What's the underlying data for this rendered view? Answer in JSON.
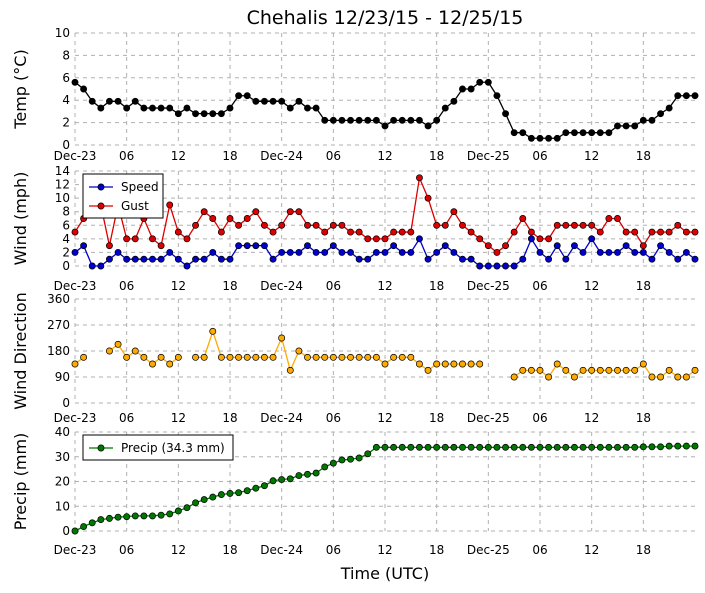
{
  "chart_data": {
    "type": "line",
    "title": "Chehalis 12/23/15 - 12/25/15",
    "xlabel": "Time (UTC)",
    "x_tick_labels": [
      "Dec-23",
      "06",
      "12",
      "18",
      "Dec-24",
      "06",
      "12",
      "18",
      "Dec-25",
      "06",
      "12",
      "18"
    ],
    "x_tick_hours": [
      0,
      6,
      12,
      18,
      24,
      30,
      36,
      42,
      48,
      54,
      60,
      66
    ],
    "x_range_hours": [
      0,
      72
    ],
    "grid": true,
    "panels": [
      {
        "id": "temp",
        "ylabel": "Temp (°C)",
        "ylim": [
          0,
          10
        ],
        "yticks": [
          0,
          2,
          4,
          6,
          8,
          10
        ],
        "legend": null,
        "series": [
          {
            "color": "#000000",
            "values": [
              5.6,
              5.0,
              3.9,
              3.3,
              3.9,
              3.9,
              3.3,
              3.9,
              3.3,
              3.3,
              3.3,
              3.3,
              2.8,
              3.3,
              2.8,
              2.8,
              2.8,
              2.8,
              3.3,
              4.4,
              4.4,
              3.9,
              3.9,
              3.9,
              3.9,
              3.3,
              3.9,
              3.3,
              3.3,
              2.2,
              2.2,
              2.2,
              2.2,
              2.2,
              2.2,
              2.2,
              1.7,
              2.2,
              2.2,
              2.2,
              2.2,
              1.7,
              2.2,
              3.3,
              3.9,
              5.0,
              5.0,
              5.6,
              5.6,
              4.4,
              2.8,
              1.1,
              1.1,
              0.6,
              0.6,
              0.6,
              0.6,
              1.1,
              1.1,
              1.1,
              1.1,
              1.1,
              1.1,
              1.7,
              1.7,
              1.7,
              2.2,
              2.2,
              2.8,
              3.3,
              4.4,
              4.4,
              4.4
            ]
          }
        ]
      },
      {
        "id": "wind",
        "ylabel": "Wind (mph)",
        "ylim": [
          0,
          14
        ],
        "yticks": [
          0,
          2,
          4,
          6,
          8,
          10,
          12,
          14
        ],
        "legend": "top-left",
        "series": [
          {
            "name": "Speed",
            "color": "#0000cc",
            "values": [
              2,
              3,
              0,
              0,
              1,
              2,
              1,
              1,
              1,
              1,
              1,
              2,
              1,
              0,
              1,
              1,
              2,
              1,
              1,
              3,
              3,
              3,
              3,
              1,
              2,
              2,
              2,
              3,
              2,
              2,
              3,
              2,
              2,
              1,
              1,
              2,
              2,
              3,
              2,
              2,
              4,
              1,
              2,
              3,
              2,
              1,
              1,
              0,
              0,
              0,
              0,
              0,
              1,
              4,
              2,
              1,
              3,
              1,
              3,
              2,
              4,
              2,
              2,
              2,
              3,
              2,
              2,
              1,
              3,
              2,
              1,
              2,
              1
            ]
          },
          {
            "name": "Gust",
            "color": "#dd0000",
            "values": [
              5,
              7,
              8,
              9,
              3,
              9,
              4,
              4,
              7,
              4,
              3,
              9,
              5,
              4,
              6,
              8,
              7,
              5,
              7,
              6,
              7,
              8,
              6,
              5,
              6,
              8,
              8,
              6,
              6,
              5,
              6,
              6,
              5,
              5,
              4,
              4,
              4,
              5,
              5,
              5,
              13,
              10,
              6,
              6,
              8,
              6,
              5,
              4,
              3,
              2,
              3,
              5,
              7,
              5,
              4,
              4,
              6,
              6,
              6,
              6,
              6,
              5,
              7,
              7,
              5,
              5,
              3,
              5,
              5,
              5,
              6,
              5,
              5
            ]
          }
        ]
      },
      {
        "id": "direction",
        "ylabel": "Wind Direction",
        "ylim": [
          0,
          360
        ],
        "yticks": [
          0,
          90,
          180,
          270,
          360
        ],
        "legend": null,
        "series": [
          {
            "color": "#ffaa00",
            "values": [
              135,
              158,
              null,
              null,
              180,
              203,
              158,
              180,
              158,
              135,
              158,
              135,
              158,
              null,
              158,
              158,
              248,
              158,
              158,
              158,
              158,
              158,
              158,
              158,
              225,
              113,
              180,
              158,
              158,
              158,
              158,
              158,
              158,
              158,
              158,
              158,
              135,
              158,
              158,
              158,
              135,
              113,
              135,
              135,
              135,
              135,
              135,
              135,
              null,
              null,
              null,
              90,
              113,
              113,
              113,
              90,
              135,
              113,
              90,
              113,
              113,
              113,
              113,
              113,
              113,
              113,
              135,
              90,
              90,
              113,
              90,
              90,
              113
            ]
          }
        ]
      },
      {
        "id": "precip",
        "ylabel": "Precip (mm)",
        "ylim": [
          0,
          40
        ],
        "yticks": [
          0,
          10,
          20,
          30,
          40
        ],
        "legend": "top-left",
        "series": [
          {
            "name": "Precip (34.3 mm)",
            "color": "#007700",
            "values": [
              0.0,
              1.8,
              3.3,
              4.6,
              5.1,
              5.6,
              5.8,
              6.1,
              6.1,
              6.1,
              6.4,
              6.9,
              8.1,
              9.4,
              11.4,
              12.7,
              13.7,
              14.7,
              15.2,
              15.5,
              16.3,
              17.3,
              18.3,
              20.3,
              20.8,
              21.1,
              22.4,
              22.9,
              23.4,
              25.9,
              27.4,
              28.7,
              29.0,
              29.5,
              31.2,
              33.8,
              33.8,
              33.8,
              33.8,
              33.8,
              33.8,
              33.8,
              33.8,
              33.8,
              33.8,
              33.8,
              33.8,
              33.8,
              33.8,
              33.8,
              33.8,
              33.8,
              33.8,
              33.8,
              33.8,
              33.8,
              33.8,
              33.8,
              33.8,
              33.8,
              33.8,
              33.8,
              33.8,
              33.8,
              33.8,
              33.8,
              34.0,
              34.0,
              34.0,
              34.3,
              34.3,
              34.3,
              34.3
            ]
          }
        ]
      }
    ]
  }
}
